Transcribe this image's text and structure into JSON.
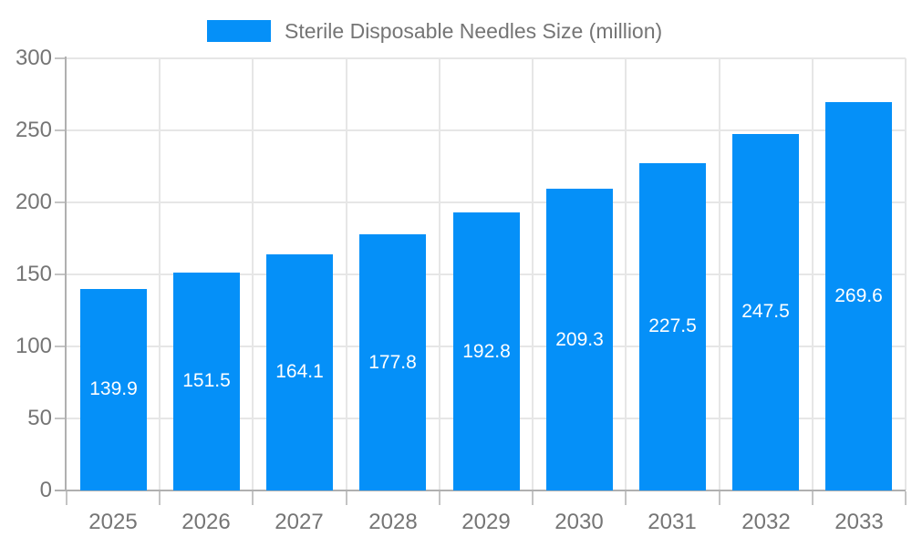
{
  "chart_data": {
    "type": "bar",
    "title": "Sterile Disposable Needles Size (million)",
    "categories": [
      "2025",
      "2026",
      "2027",
      "2028",
      "2029",
      "2030",
      "2031",
      "2032",
      "2033"
    ],
    "series": [
      {
        "name": "Sterile Disposable Needles Size (million)",
        "values": [
          139.9,
          151.5,
          164.1,
          177.8,
          192.8,
          209.3,
          227.5,
          247.5,
          269.6
        ]
      }
    ],
    "xlabel": "",
    "ylabel": "",
    "ylim": [
      0,
      300
    ],
    "y_ticks": [
      0,
      50,
      100,
      150,
      200,
      250,
      300
    ],
    "grid": true,
    "legend_position": "top",
    "data_labels_shown": true,
    "colors": {
      "bar": "#0590F8",
      "data_label_text": "#FFFFFF",
      "axis_text": "#757575",
      "grid_line": "#E6E6E6",
      "axis_line": "#B0B0B0",
      "tick_line": "#C4C4C4",
      "background": "#FFFFFF"
    }
  }
}
